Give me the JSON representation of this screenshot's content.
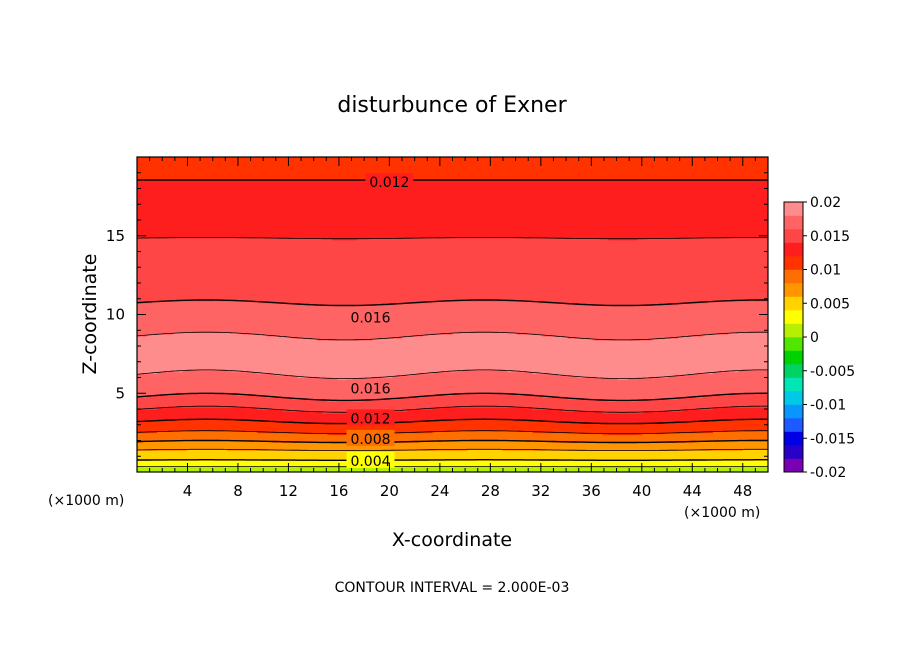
{
  "chart_data": {
    "type": "heatmap",
    "title": "disturbunce of Exner",
    "xlabel": "X-coordinate",
    "ylabel": "Z-coordinate",
    "x_unit_label": "(×1000 m)",
    "y_unit_label": "(×1000 m)",
    "xlim": [
      0,
      50
    ],
    "ylim": [
      0,
      20
    ],
    "x_ticks": [
      "4",
      "8",
      "12",
      "16",
      "20",
      "24",
      "28",
      "32",
      "36",
      "40",
      "44",
      "48"
    ],
    "y_ticks": [
      "5",
      "10",
      "15"
    ],
    "colorbar": {
      "range": [
        -0.02,
        0.02
      ],
      "tick_labels": [
        "0.02",
        "0.015",
        "0.01",
        "0.005",
        "0",
        "-0.005",
        "-0.01",
        "-0.015",
        "-0.02"
      ],
      "colors": [
        "#7a00b4",
        "#2a00c8",
        "#0000e6",
        "#1e5aff",
        "#0a96ff",
        "#00c8e6",
        "#00e6b4",
        "#00d264",
        "#00d200",
        "#50e600",
        "#b4f000",
        "#ffff00",
        "#ffd200",
        "#ff9600",
        "#ff6e00",
        "#ff3200",
        "#ff1e1e",
        "#ff4646",
        "#ff6464",
        "#ff8c8c"
      ]
    },
    "contour_interval": 0.002,
    "footer": "CONTOUR INTERVAL = 2.000E-03",
    "contour_labels": [
      {
        "text": "0.012",
        "x": 20,
        "z": 18.4
      },
      {
        "text": "0.016",
        "x": 18.5,
        "z": 9.8
      },
      {
        "text": "0.016",
        "x": 18.5,
        "z": 5.3
      },
      {
        "text": "0.012",
        "x": 18.5,
        "z": 3.4
      },
      {
        "text": "0.008",
        "x": 18.5,
        "z": 2.1
      },
      {
        "text": "0.004",
        "x": 18.5,
        "z": 0.7
      }
    ],
    "field_profile": [
      [
        0.0,
        0.0
      ],
      [
        0.6,
        0.0035
      ],
      [
        1.4,
        0.006
      ],
      [
        2.2,
        0.009
      ],
      [
        3.0,
        0.0115
      ],
      [
        3.8,
        0.0135
      ],
      [
        4.5,
        0.0155
      ],
      [
        5.4,
        0.0172
      ],
      [
        6.5,
        0.0183
      ],
      [
        7.8,
        0.0187
      ],
      [
        9.0,
        0.0177
      ],
      [
        10.0,
        0.0165
      ],
      [
        11.5,
        0.0155
      ],
      [
        13.0,
        0.0148
      ],
      [
        14.2,
        0.0143
      ],
      [
        15.5,
        0.0137
      ],
      [
        16.8,
        0.013
      ],
      [
        18.0,
        0.0124
      ],
      [
        19.2,
        0.0115
      ],
      [
        20.0,
        0.0108
      ]
    ],
    "undulation": {
      "amplitude_z": 0.3,
      "period_x": 22
    }
  }
}
